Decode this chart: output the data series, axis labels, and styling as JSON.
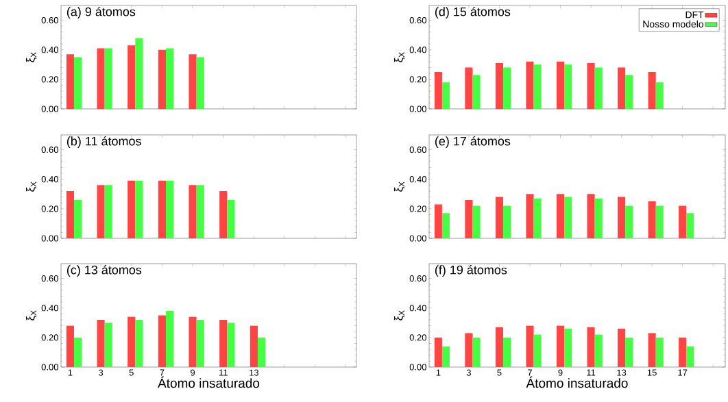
{
  "chart_data": [
    {
      "type": "bar",
      "title": "(a) 9 átomos",
      "ylabel": "ξ$_{X}$",
      "x": [
        1,
        3,
        5,
        7,
        9
      ],
      "xlim": [
        0.4,
        19.7
      ],
      "xticks": [
        1,
        3,
        5,
        7,
        9,
        11,
        13,
        15,
        17,
        19
      ],
      "ylim": [
        0,
        0.7
      ],
      "yticks": [
        {
          "value": 0,
          "label": "0.00"
        },
        {
          "value": 0.2,
          "label": "0.20"
        },
        {
          "value": 0.4,
          "label": "0.40"
        },
        {
          "value": 0.6,
          "label": "0.60"
        }
      ],
      "tick_labels": "y",
      "legend": false,
      "series": [
        {
          "color": "#ff4444",
          "values": [
            0.37,
            0.41,
            0.43,
            0.4,
            0.37
          ]
        },
        {
          "color": "#44ff44",
          "values": [
            0.35,
            0.41,
            0.48,
            0.41,
            0.35
          ]
        }
      ]
    },
    {
      "type": "bar",
      "title": "(b) 11 átomos",
      "ylabel": "ξ$_{X}$",
      "x": [
        1,
        3,
        5,
        7,
        9,
        11
      ],
      "xlim": [
        0.4,
        19.7
      ],
      "xticks": [
        1,
        3,
        5,
        7,
        9,
        11,
        13,
        15,
        17,
        19
      ],
      "ylim": [
        0,
        0.7
      ],
      "yticks": [
        {
          "value": 0,
          "label": "0.00"
        },
        {
          "value": 0.2,
          "label": "0.20"
        },
        {
          "value": 0.4,
          "label": "0.40"
        },
        {
          "value": 0.6,
          "label": "0.60"
        }
      ],
      "tick_labels": "y",
      "legend": false,
      "series": [
        {
          "color": "#ff4444",
          "values": [
            0.32,
            0.36,
            0.39,
            0.39,
            0.36,
            0.32
          ]
        },
        {
          "color": "#44ff44",
          "values": [
            0.26,
            0.36,
            0.39,
            0.39,
            0.36,
            0.26
          ]
        }
      ]
    },
    {
      "type": "bar",
      "title": "(c) 13 átomos",
      "xlabel": "Átomo insaturado",
      "ylabel": "ξ$_{X}$",
      "x": [
        1,
        3,
        5,
        7,
        9,
        11,
        13
      ],
      "xlim": [
        0.4,
        19.7
      ],
      "xticks": [
        1,
        3,
        5,
        7,
        9,
        11,
        13,
        {
          "value": 15,
          "label": null
        },
        {
          "value": 17,
          "label": null
        },
        {
          "value": 19,
          "label": null
        }
      ],
      "ylim": [
        0,
        0.7
      ],
      "yticks": [
        {
          "value": 0,
          "label": "0.00"
        },
        {
          "value": 0.2,
          "label": "0.20"
        },
        {
          "value": 0.4,
          "label": "0.40"
        },
        {
          "value": 0.6,
          "label": "0.60"
        }
      ],
      "legend": false,
      "series": [
        {
          "color": "#ff4444",
          "values": [
            0.28,
            0.32,
            0.34,
            0.35,
            0.34,
            0.32,
            0.28
          ]
        },
        {
          "color": "#44ff44",
          "values": [
            0.2,
            0.3,
            0.32,
            0.38,
            0.32,
            0.3,
            0.2
          ]
        }
      ]
    },
    {
      "type": "bar",
      "title": "(d) 15 átomos",
      "ylabel": "ξ$_{X}$",
      "x": [
        1,
        3,
        5,
        7,
        9,
        11,
        13,
        15
      ],
      "xlim": [
        0.4,
        19.8
      ],
      "xticks": [
        1,
        3,
        5,
        7,
        9,
        11,
        13,
        15,
        17,
        19
      ],
      "ylim": [
        0,
        0.7
      ],
      "yticks": [
        {
          "value": 0,
          "label": "0.00"
        },
        {
          "value": 0.2,
          "label": "0.20"
        },
        {
          "value": 0.4,
          "label": "0.40"
        },
        {
          "value": 0.6,
          "label": "0.60"
        }
      ],
      "tick_labels": "y",
      "legend": "top right",
      "series": [
        {
          "name": "DFT",
          "color": "#ff4444",
          "values": [
            0.25,
            0.28,
            0.31,
            0.32,
            0.32,
            0.31,
            0.28,
            0.25
          ]
        },
        {
          "name": "Nosso modelo",
          "color": "#44ff44",
          "values": [
            0.18,
            0.23,
            0.28,
            0.3,
            0.3,
            0.28,
            0.23,
            0.18
          ]
        }
      ]
    },
    {
      "type": "bar",
      "title": "(e) 17 átomos",
      "ylabel": "ξ$_{X}$",
      "x": [
        1,
        3,
        5,
        7,
        9,
        11,
        13,
        15,
        17
      ],
      "xlim": [
        0.4,
        19.8
      ],
      "xticks": [
        1,
        3,
        5,
        7,
        9,
        11,
        13,
        15,
        17,
        19
      ],
      "ylim": [
        0,
        0.7
      ],
      "yticks": [
        {
          "value": 0,
          "label": "0.00"
        },
        {
          "value": 0.2,
          "label": "0.20"
        },
        {
          "value": 0.4,
          "label": "0.40"
        },
        {
          "value": 0.6,
          "label": "0.60"
        }
      ],
      "tick_labels": "y",
      "legend": false,
      "series": [
        {
          "color": "#ff4444",
          "values": [
            0.23,
            0.26,
            0.28,
            0.3,
            0.3,
            0.3,
            0.28,
            0.25,
            0.22
          ]
        },
        {
          "color": "#44ff44",
          "values": [
            0.17,
            0.22,
            0.22,
            0.27,
            0.28,
            0.27,
            0.22,
            0.22,
            0.17
          ]
        }
      ]
    },
    {
      "type": "bar",
      "title": "(f) 19 átomos",
      "xlabel": "Átomo insaturado",
      "ylabel": "ξ$_{X}$",
      "x": [
        1,
        3,
        5,
        7,
        9,
        11,
        13,
        15,
        17
      ],
      "xlim": [
        0.4,
        19.8
      ],
      "xticks": [
        1,
        3,
        5,
        7,
        9,
        11,
        13,
        15,
        17,
        {
          "value": 19,
          "label": null
        }
      ],
      "ylim": [
        0,
        0.7
      ],
      "yticks": [
        {
          "value": 0,
          "label": "0.00"
        },
        {
          "value": 0.2,
          "label": "0.20"
        },
        {
          "value": 0.4,
          "label": "0.40"
        },
        {
          "value": 0.6,
          "label": "0.60"
        }
      ],
      "legend": false,
      "series": [
        {
          "color": "#ff4444",
          "values": [
            0.2,
            0.23,
            0.27,
            0.28,
            0.28,
            0.27,
            0.26,
            0.23,
            0.2
          ]
        },
        {
          "color": "#44ff44",
          "values": [
            0.14,
            0.2,
            0.2,
            0.22,
            0.26,
            0.22,
            0.2,
            0.2,
            0.14
          ]
        }
      ]
    }
  ]
}
